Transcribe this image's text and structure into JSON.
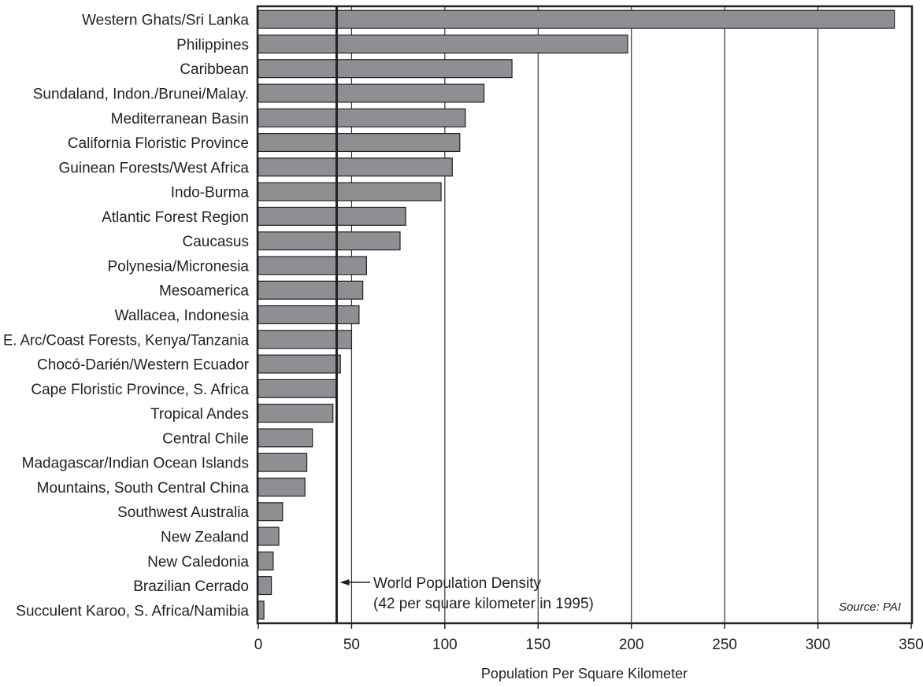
{
  "chart_data": {
    "type": "bar",
    "orientation": "horizontal",
    "categories": [
      "Western Ghats/Sri Lanka",
      "Philippines",
      "Caribbean",
      "Sundaland, Indon./Brunei/Malay.",
      "Mediterranean Basin",
      "California Floristic Province",
      "Guinean Forests/West Africa",
      "Indo-Burma",
      "Atlantic Forest Region",
      "Caucasus",
      "Polynesia/Micronesia",
      "Mesoamerica",
      "Wallacea, Indonesia",
      "E. Arc/Coast Forests, Kenya/Tanzania",
      "Chocó-Darién/Western Ecuador",
      "Cape Floristic Province, S. Africa",
      "Tropical Andes",
      "Central Chile",
      "Madagascar/Indian Ocean Islands",
      "Mountains, South Central China",
      "Southwest Australia",
      "New Zealand",
      "New Caledonia",
      "Brazilian Cerrado",
      "Succulent Karoo, S. Africa/Namibia"
    ],
    "values": [
      341,
      198,
      136,
      121,
      111,
      108,
      104,
      98,
      79,
      76,
      58,
      56,
      54,
      50,
      44,
      42,
      40,
      29,
      26,
      25,
      13,
      11,
      8,
      7,
      3
    ],
    "xlabel": "Population Per Square Kilometer",
    "ylabel": "",
    "xlim": [
      0,
      350
    ],
    "xticks": [
      0,
      50,
      100,
      150,
      200,
      250,
      300,
      350
    ],
    "grid": "vertical",
    "bar_color": "#8e8f93",
    "reference_line": {
      "value": 42,
      "label_line1": "World Population Density",
      "label_line2": "(42 per square kilometer in 1995)"
    },
    "source": "Source: PAI"
  }
}
